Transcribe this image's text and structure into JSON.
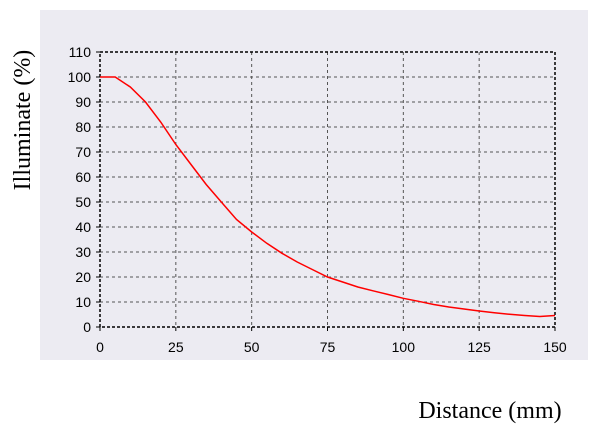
{
  "chart_data": {
    "type": "line",
    "xlabel": "Distance (mm)",
    "ylabel": "Illuminate (%)",
    "xlim": [
      0,
      150
    ],
    "ylim": [
      0,
      110
    ],
    "xticks": [
      0,
      25,
      50,
      75,
      100,
      125,
      150
    ],
    "yticks": [
      0,
      10,
      20,
      30,
      40,
      50,
      60,
      70,
      80,
      90,
      100,
      110
    ],
    "grid": true,
    "colors": {
      "line": "#ff0000",
      "grid": "#555555",
      "frame": "#000000",
      "background": "#ecebf2"
    },
    "series": [
      {
        "x": [
          0,
          5,
          10,
          15,
          20,
          25,
          30,
          35,
          40,
          45,
          50,
          55,
          60,
          65,
          70,
          75,
          80,
          85,
          90,
          95,
          100,
          105,
          110,
          115,
          120,
          125,
          130,
          135,
          140,
          145,
          150
        ],
        "y": [
          100,
          100,
          96,
          90,
          82,
          73,
          65,
          57,
          50,
          43,
          38,
          33.5,
          29.5,
          26,
          23,
          20,
          18,
          16,
          14.5,
          13,
          11.5,
          10.3,
          9,
          8,
          7.2,
          6.4,
          5.7,
          5.1,
          4.6,
          4.2,
          4.6
        ]
      }
    ]
  }
}
